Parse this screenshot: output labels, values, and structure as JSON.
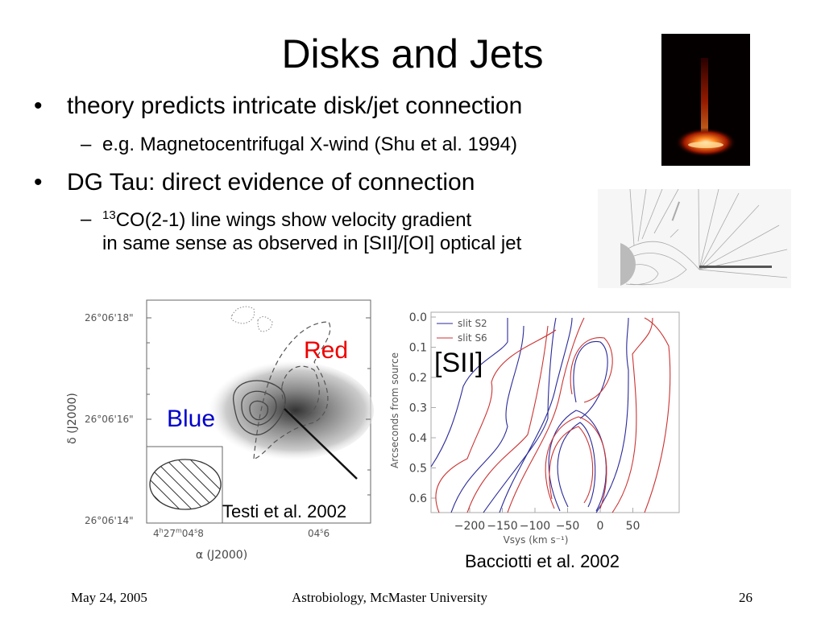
{
  "slide": {
    "title": "Disks and Jets",
    "bullets": [
      {
        "text": "theory predicts intricate disk/jet connection",
        "sub": [
          "e.g. Magnetocentrifugal X-wind (Shu et al. 1994)"
        ]
      },
      {
        "text": "DG Tau: direct evidence of connection",
        "sub_sup": "13",
        "sub_line1": "CO(2-1) line wings show velocity gradient",
        "sub_line2": "in same sense as observed in [SII]/[OI] optical jet"
      }
    ],
    "bullet_glyph": "•",
    "sub_glyph": "–"
  },
  "figure_left": {
    "red_label": "Red",
    "blue_label": "Blue",
    "red_color": "#ee0000",
    "blue_color": "#0000cc",
    "credit": "Testi et al. 2002",
    "y_ticks": [
      "26°06'18\"",
      "26°06'16\"",
      "26°06'14\""
    ],
    "x_ticks": [
      "4h27m04s8",
      "04s6"
    ],
    "x_tick_parts": {
      "h": "4",
      "hsup": "h",
      "m": "27",
      "msup": "m",
      "s1": "04",
      "ssup": "s",
      "s2": "8",
      "s3": "04",
      "s4": "6"
    },
    "ylabel": "δ (J2000)",
    "xlabel": "α (J2000)"
  },
  "figure_right": {
    "label": "[SII]",
    "credit": "Baciotti et al. 2002",
    "credit_text": "Bacciotti et al. 2002",
    "legend": [
      {
        "name": "slit S2",
        "color": "#2a2a9a"
      },
      {
        "name": "slit S6",
        "color": "#cc3333"
      }
    ],
    "y_ticks": [
      "0.0",
      "0.1",
      "0.2",
      "0.3",
      "0.4",
      "0.5",
      "0.6"
    ],
    "x_ticks": [
      "−200",
      "−150",
      "−100",
      "−50",
      "0",
      "50"
    ],
    "ylabel": "Arcseconds from source",
    "xlabel": "Vsys (km s⁻¹)"
  },
  "footer": {
    "date": "May 24, 2005",
    "center": "Astrobiology, McMaster University",
    "page": "26"
  }
}
